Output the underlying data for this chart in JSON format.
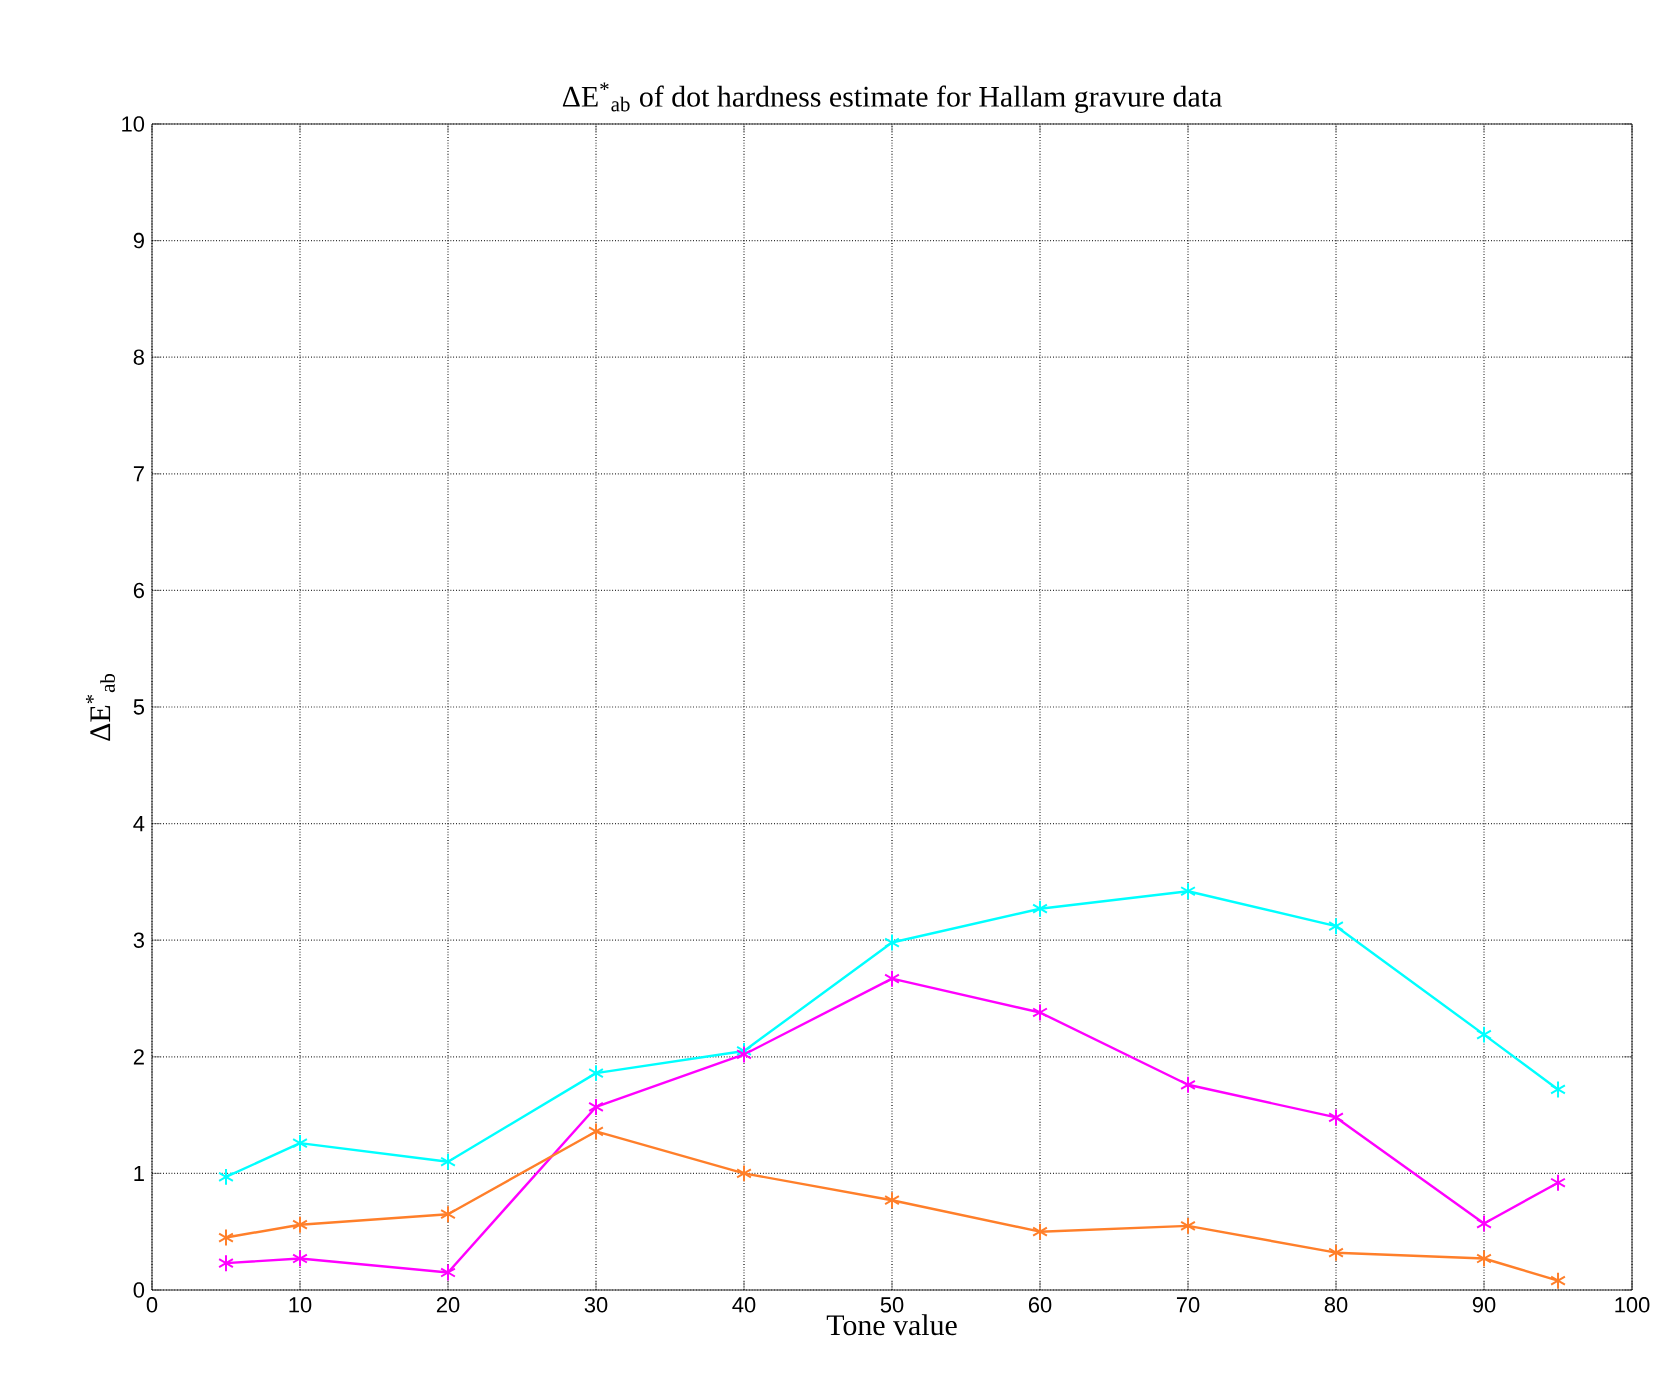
{
  "chart_data": {
    "type": "line",
    "title": "ΔE$^{*}$$_{ab}$ of dot hardness estimate for Hallam gravure data",
    "xlabel": "Tone value",
    "ylabel": "ΔE$^{*}$$_{ab}$",
    "x": [
      5,
      10,
      20,
      30,
      40,
      50,
      60,
      70,
      80,
      90,
      95
    ],
    "series": [
      {
        "color": "#00ffff",
        "values": [
          0.97,
          1.26,
          1.1,
          1.86,
          2.05,
          2.98,
          3.27,
          3.42,
          3.12,
          2.19,
          1.72
        ]
      },
      {
        "color": "#ff00ff",
        "values": [
          0.23,
          0.27,
          0.15,
          1.57,
          2.02,
          2.67,
          2.38,
          1.76,
          1.48,
          0.57,
          0.92
        ]
      },
      {
        "color": "#ff7f2a",
        "values": [
          0.45,
          0.56,
          0.65,
          1.36,
          1.0,
          0.77,
          0.5,
          0.55,
          0.32,
          0.27,
          0.08
        ]
      }
    ],
    "xlim": [
      0,
      100
    ],
    "xticks": [
      0,
      10,
      20,
      30,
      40,
      50,
      60,
      70,
      80,
      90,
      100
    ],
    "ylim": [
      0,
      10
    ],
    "yticks": [
      0,
      1,
      2,
      3,
      4,
      5,
      6,
      7,
      8,
      9,
      10
    ],
    "grid": true,
    "marker": "cross",
    "line_style": "solid"
  }
}
